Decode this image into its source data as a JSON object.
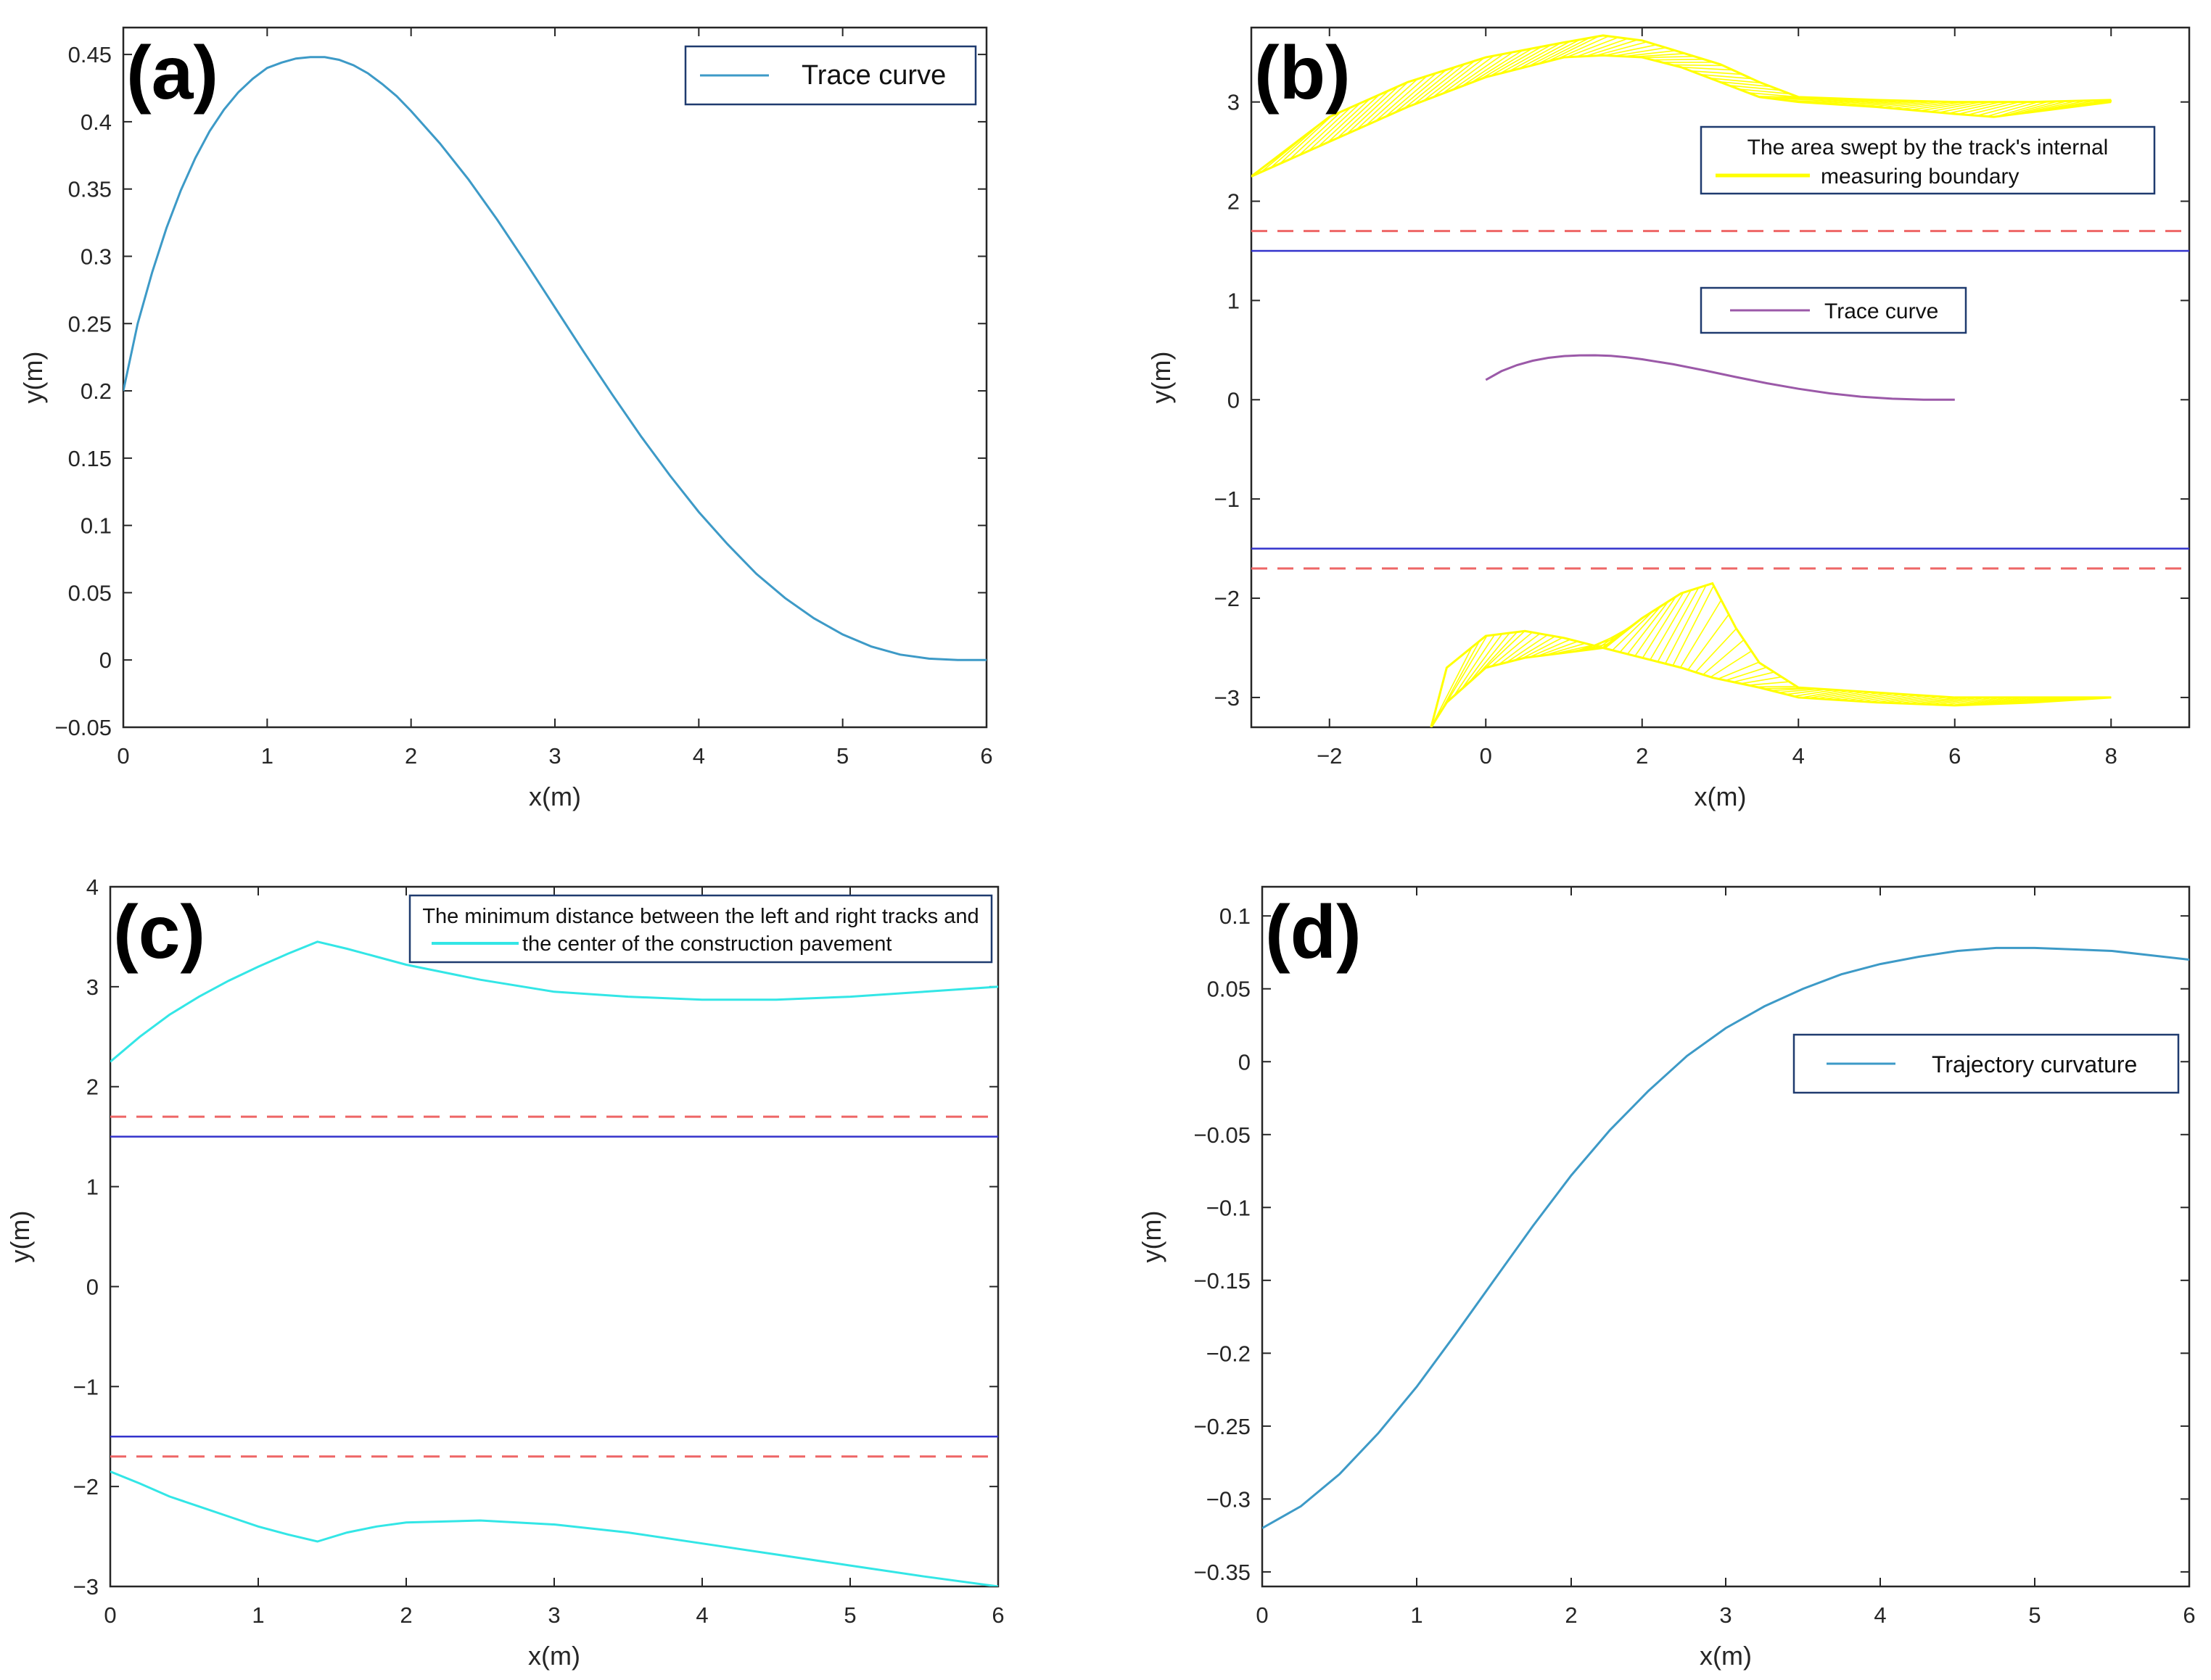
{
  "colors": {
    "axis": "#262626",
    "trace": "#3d9ac7",
    "trace_b": "#9b59a8",
    "swept": "#ffff00",
    "cyan": "#33e6e6",
    "blue_line": "#3333cc",
    "red_dash": "#ee6666",
    "legend_border": "#1f3b6f"
  },
  "chart_data": [
    {
      "id": "a",
      "panel_label": "(a)",
      "type": "line",
      "xlabel": "x(m)",
      "ylabel": "y(m)",
      "xlim": [
        0,
        6
      ],
      "ylim": [
        -0.05,
        0.47
      ],
      "xticks": [
        0,
        1,
        2,
        3,
        4,
        5,
        6
      ],
      "xticklabels": [
        "0",
        "1",
        "2",
        "3",
        "4",
        "5",
        "6"
      ],
      "yticks": [
        -0.05,
        0,
        0.05,
        0.1,
        0.15,
        0.2,
        0.25,
        0.3,
        0.35,
        0.4,
        0.45
      ],
      "yticklabels": [
        "−0.05",
        "0",
        "0.05",
        "0.1",
        "0.15",
        "0.2",
        "0.25",
        "0.3",
        "0.35",
        "0.4",
        "0.45"
      ],
      "legend": [
        "Trace curve"
      ],
      "legend_position": "top-right",
      "series": [
        {
          "name": "Trace curve",
          "style": "solid",
          "x": [
            0,
            0.1,
            0.2,
            0.3,
            0.4,
            0.5,
            0.6,
            0.7,
            0.8,
            0.9,
            1.0,
            1.1,
            1.2,
            1.3,
            1.4,
            1.5,
            1.6,
            1.7,
            1.8,
            1.9,
            2.0,
            2.2,
            2.4,
            2.6,
            2.8,
            3.0,
            3.2,
            3.4,
            3.6,
            3.8,
            4.0,
            4.2,
            4.4,
            4.6,
            4.8,
            5.0,
            5.2,
            5.4,
            5.6,
            5.8,
            6.0
          ],
          "y": [
            0.2,
            0.25,
            0.288,
            0.321,
            0.349,
            0.373,
            0.393,
            0.409,
            0.422,
            0.432,
            0.44,
            0.444,
            0.447,
            0.448,
            0.448,
            0.446,
            0.442,
            0.436,
            0.428,
            0.419,
            0.408,
            0.384,
            0.357,
            0.327,
            0.295,
            0.262,
            0.229,
            0.197,
            0.166,
            0.137,
            0.11,
            0.086,
            0.064,
            0.046,
            0.031,
            0.019,
            0.01,
            0.004,
            0.001,
            0.0,
            0.0
          ]
        }
      ]
    },
    {
      "id": "b",
      "panel_label": "(b)",
      "type": "line",
      "xlabel": "x(m)",
      "ylabel": "y(m)",
      "xlim": [
        -3,
        9
      ],
      "ylim": [
        -3.3,
        3.75
      ],
      "xticks": [
        -2,
        0,
        2,
        4,
        6,
        8
      ],
      "xticklabels": [
        "−2",
        "0",
        "2",
        "4",
        "6",
        "8"
      ],
      "yticks": [
        -3,
        -2,
        -1,
        0,
        1,
        2,
        3
      ],
      "yticklabels": [
        "−3",
        "−2",
        "−1",
        "0",
        "1",
        "2",
        "3"
      ],
      "legend": [
        "The area swept by the track's internal",
        "measuring boundary",
        "Trace curve"
      ],
      "legend_position": "top-right",
      "series": [
        {
          "name": "Trace curve",
          "style": "solid",
          "x": [
            0,
            0.2,
            0.4,
            0.6,
            0.8,
            1.0,
            1.2,
            1.4,
            1.6,
            1.8,
            2.0,
            2.4,
            2.8,
            3.2,
            3.6,
            4.0,
            4.4,
            4.8,
            5.2,
            5.6,
            6.0
          ],
          "y": [
            0.2,
            0.288,
            0.349,
            0.393,
            0.422,
            0.44,
            0.447,
            0.448,
            0.442,
            0.428,
            0.408,
            0.357,
            0.295,
            0.229,
            0.166,
            0.11,
            0.064,
            0.031,
            0.01,
            0.001,
            0.0
          ]
        },
        {
          "name": "upper limit (dashed)",
          "style": "dashed",
          "x": [
            -3,
            9
          ],
          "y": [
            1.7,
            1.7
          ]
        },
        {
          "name": "upper boundary",
          "style": "solid",
          "x": [
            -3,
            9
          ],
          "y": [
            1.5,
            1.5
          ]
        },
        {
          "name": "lower boundary",
          "style": "solid",
          "x": [
            -3,
            9
          ],
          "y": [
            -1.5,
            -1.5
          ]
        },
        {
          "name": "lower limit (dashed)",
          "style": "dashed",
          "x": [
            -3,
            9
          ],
          "y": [
            -1.7,
            -1.7
          ]
        }
      ],
      "swept_areas": [
        {
          "name": "upper swept area",
          "top": {
            "x": [
              -3.0,
              -2.0,
              -1.0,
              0.0,
              1.0,
              1.5,
              2.0,
              2.5,
              3.0,
              3.5,
              4.0,
              5.0,
              6.0,
              6.5,
              7.0,
              8.0
            ],
            "y": [
              2.25,
              2.85,
              3.2,
              3.45,
              3.6,
              3.67,
              3.62,
              3.5,
              3.38,
              3.2,
              3.05,
              3.02,
              3.0,
              3.0,
              3.0,
              3.02
            ]
          },
          "bottom": {
            "x": [
              -3.0,
              -2.0,
              -1.0,
              0.0,
              1.0,
              1.5,
              2.0,
              2.5,
              3.0,
              3.5,
              4.0,
              5.0,
              6.0,
              6.5,
              7.0,
              8.0
            ],
            "y": [
              2.25,
              2.6,
              2.95,
              3.25,
              3.45,
              3.47,
              3.45,
              3.35,
              3.2,
              3.05,
              3.0,
              2.95,
              2.88,
              2.85,
              2.9,
              3.0
            ]
          }
        },
        {
          "name": "lower swept area",
          "top": {
            "x": [
              -0.7,
              -0.5,
              0.0,
              0.5,
              1.0,
              1.5,
              2.0,
              2.5,
              2.9,
              3.2,
              3.5,
              4.0,
              5.0,
              6.0,
              7.0,
              8.0
            ],
            "y": [
              -3.3,
              -2.7,
              -2.38,
              -2.33,
              -2.4,
              -2.5,
              -2.2,
              -1.95,
              -1.85,
              -2.3,
              -2.65,
              -2.9,
              -2.95,
              -3.0,
              -3.0,
              -3.0
            ]
          },
          "bottom": {
            "x": [
              -0.7,
              -0.5,
              0.0,
              0.5,
              1.0,
              1.5,
              2.0,
              2.5,
              2.9,
              3.2,
              3.5,
              4.0,
              5.0,
              6.0,
              7.0,
              8.0
            ],
            "y": [
              -3.3,
              -3.05,
              -2.7,
              -2.6,
              -2.55,
              -2.5,
              -2.6,
              -2.7,
              -2.8,
              -2.85,
              -2.9,
              -3.0,
              -3.05,
              -3.08,
              -3.05,
              -3.0
            ]
          }
        }
      ]
    },
    {
      "id": "c",
      "panel_label": "(c)",
      "type": "line",
      "xlabel": "x(m)",
      "ylabel": "y(m)",
      "xlim": [
        0,
        6
      ],
      "ylim": [
        -3,
        4
      ],
      "xticks": [
        0,
        1,
        2,
        3,
        4,
        5,
        6
      ],
      "xticklabels": [
        "0",
        "1",
        "2",
        "3",
        "4",
        "5",
        "6"
      ],
      "yticks": [
        -3,
        -2,
        -1,
        0,
        1,
        2,
        3,
        4
      ],
      "yticklabels": [
        "−3",
        "−2",
        "−1",
        "0",
        "1",
        "2",
        "3",
        "4"
      ],
      "legend": [
        "The minimum distance between the left and right tracks and",
        "the center of the construction pavement"
      ],
      "legend_position": "top-right",
      "series": [
        {
          "name": "left track",
          "style": "solid",
          "x": [
            0,
            0.2,
            0.4,
            0.6,
            0.8,
            1.0,
            1.2,
            1.4,
            1.6,
            1.8,
            2.0,
            2.5,
            3.0,
            3.5,
            4.0,
            4.5,
            5.0,
            5.5,
            6.0
          ],
          "y": [
            2.25,
            2.5,
            2.72,
            2.9,
            3.06,
            3.2,
            3.33,
            3.45,
            3.38,
            3.3,
            3.22,
            3.07,
            2.95,
            2.9,
            2.87,
            2.87,
            2.9,
            2.95,
            3.0
          ]
        },
        {
          "name": "right track",
          "style": "solid",
          "x": [
            0,
            0.2,
            0.4,
            0.6,
            0.8,
            1.0,
            1.2,
            1.4,
            1.6,
            1.8,
            2.0,
            2.5,
            3.0,
            3.5,
            4.0,
            4.5,
            5.0,
            5.5,
            6.0
          ],
          "y": [
            -1.85,
            -1.97,
            -2.1,
            -2.2,
            -2.3,
            -2.4,
            -2.48,
            -2.55,
            -2.46,
            -2.4,
            -2.36,
            -2.34,
            -2.38,
            -2.46,
            -2.57,
            -2.68,
            -2.79,
            -2.9,
            -3.0
          ]
        },
        {
          "name": "upper limit (dashed)",
          "style": "dashed",
          "x": [
            0,
            6
          ],
          "y": [
            1.7,
            1.7
          ]
        },
        {
          "name": "upper boundary",
          "style": "solid",
          "x": [
            0,
            6
          ],
          "y": [
            1.5,
            1.5
          ]
        },
        {
          "name": "lower boundary",
          "style": "solid",
          "x": [
            0,
            6
          ],
          "y": [
            -1.5,
            -1.5
          ]
        },
        {
          "name": "lower limit (dashed)",
          "style": "dashed",
          "x": [
            0,
            6
          ],
          "y": [
            -1.7,
            -1.7
          ]
        }
      ]
    },
    {
      "id": "d",
      "panel_label": "(d)",
      "type": "line",
      "xlabel": "x(m)",
      "ylabel": "y(m)",
      "xlim": [
        0,
        6
      ],
      "ylim": [
        -0.36,
        0.12
      ],
      "xticks": [
        0,
        1,
        2,
        3,
        4,
        5,
        6
      ],
      "xticklabels": [
        "0",
        "1",
        "2",
        "3",
        "4",
        "5",
        "6"
      ],
      "yticks": [
        -0.35,
        -0.3,
        -0.25,
        -0.2,
        -0.15,
        -0.1,
        -0.05,
        0,
        0.05,
        0.1
      ],
      "yticklabels": [
        "−0.35",
        "−0.3",
        "−0.25",
        "−0.2",
        "−0.15",
        "−0.1",
        "−0.05",
        "0",
        "0.05",
        "0.1"
      ],
      "legend": [
        "Trajectory curvature"
      ],
      "legend_position": "right",
      "series": [
        {
          "name": "Trajectory curvature",
          "style": "solid",
          "x": [
            0,
            0.25,
            0.5,
            0.75,
            1.0,
            1.25,
            1.5,
            1.75,
            2.0,
            2.25,
            2.5,
            2.75,
            3.0,
            3.25,
            3.5,
            3.75,
            4.0,
            4.25,
            4.5,
            4.75,
            5.0,
            5.25,
            5.5,
            5.75,
            6.0
          ],
          "y": [
            -0.32,
            -0.305,
            -0.283,
            -0.255,
            -0.223,
            -0.187,
            -0.15,
            -0.113,
            -0.078,
            -0.047,
            -0.02,
            0.004,
            0.023,
            0.038,
            0.05,
            0.06,
            0.067,
            0.072,
            0.076,
            0.078,
            0.078,
            0.077,
            0.076,
            0.073,
            0.07
          ]
        }
      ]
    }
  ]
}
